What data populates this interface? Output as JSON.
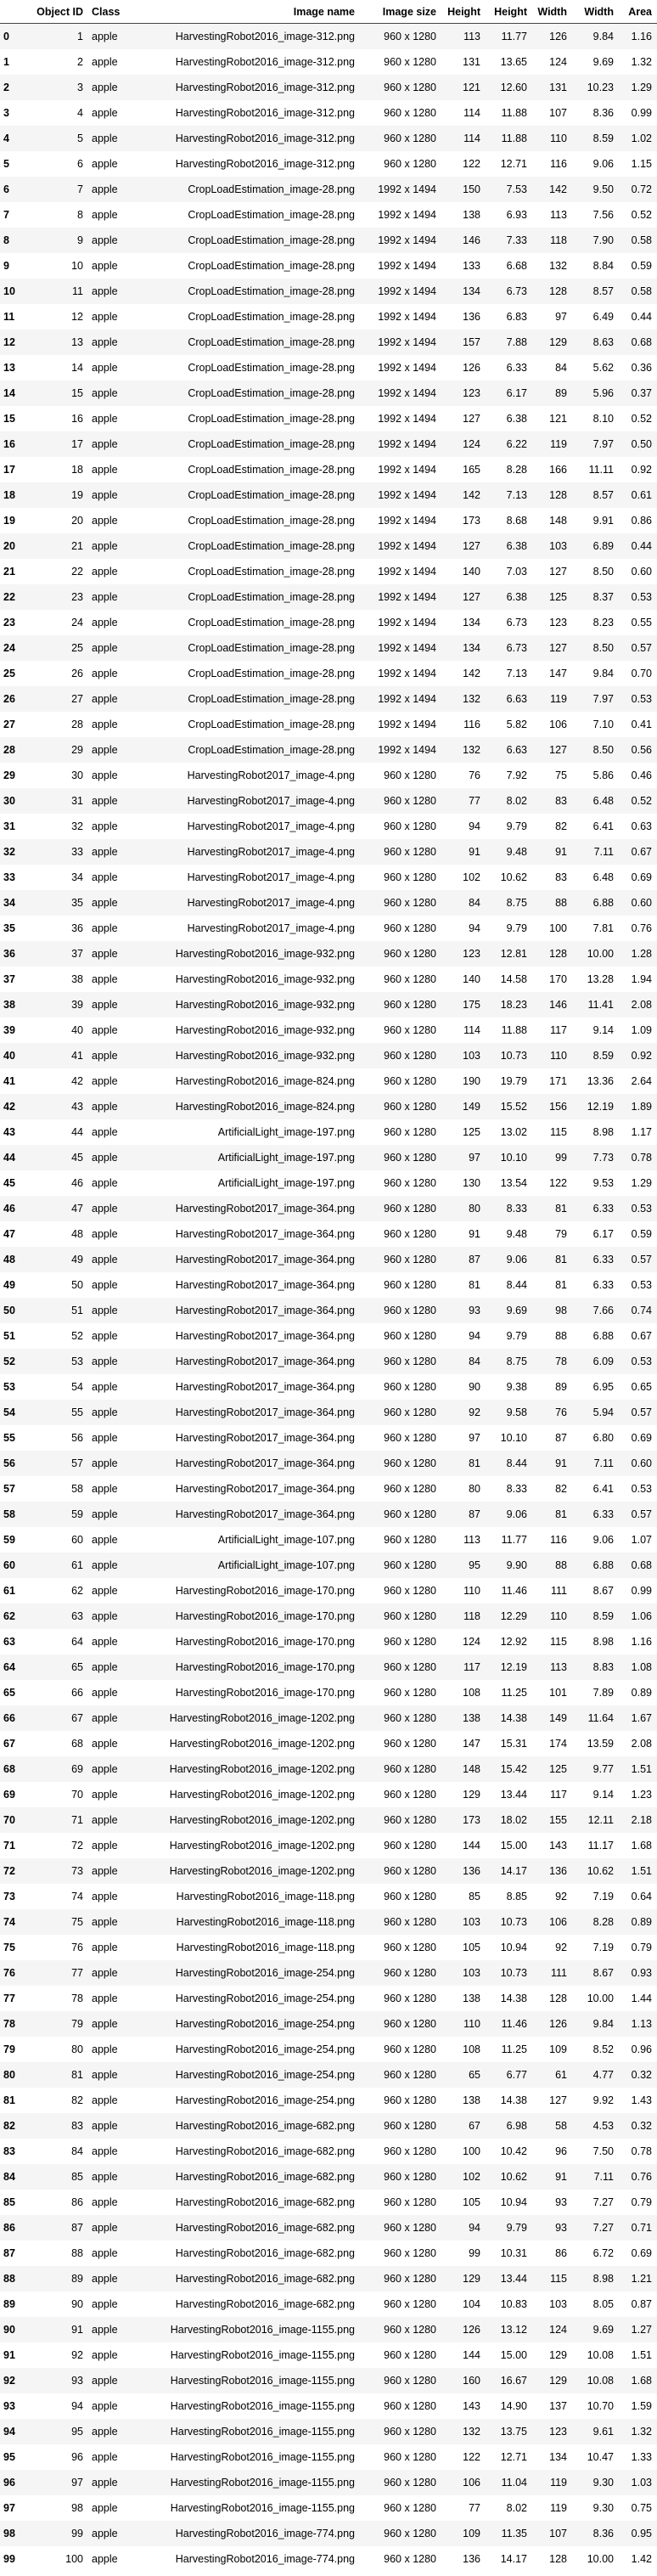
{
  "columns": [
    "",
    "Object ID",
    "Class",
    "Image name",
    "Image size",
    "Height",
    "Height",
    "Width",
    "Width",
    "Area"
  ],
  "rows": [
    [
      "0",
      "1",
      "apple",
      "HarvestingRobot2016_image-312.png",
      "960 x 1280",
      "113",
      "11.77",
      "126",
      "9.84",
      "1.16"
    ],
    [
      "1",
      "2",
      "apple",
      "HarvestingRobot2016_image-312.png",
      "960 x 1280",
      "131",
      "13.65",
      "124",
      "9.69",
      "1.32"
    ],
    [
      "2",
      "3",
      "apple",
      "HarvestingRobot2016_image-312.png",
      "960 x 1280",
      "121",
      "12.60",
      "131",
      "10.23",
      "1.29"
    ],
    [
      "3",
      "4",
      "apple",
      "HarvestingRobot2016_image-312.png",
      "960 x 1280",
      "114",
      "11.88",
      "107",
      "8.36",
      "0.99"
    ],
    [
      "4",
      "5",
      "apple",
      "HarvestingRobot2016_image-312.png",
      "960 x 1280",
      "114",
      "11.88",
      "110",
      "8.59",
      "1.02"
    ],
    [
      "5",
      "6",
      "apple",
      "HarvestingRobot2016_image-312.png",
      "960 x 1280",
      "122",
      "12.71",
      "116",
      "9.06",
      "1.15"
    ],
    [
      "6",
      "7",
      "apple",
      "CropLoadEstimation_image-28.png",
      "1992 x 1494",
      "150",
      "7.53",
      "142",
      "9.50",
      "0.72"
    ],
    [
      "7",
      "8",
      "apple",
      "CropLoadEstimation_image-28.png",
      "1992 x 1494",
      "138",
      "6.93",
      "113",
      "7.56",
      "0.52"
    ],
    [
      "8",
      "9",
      "apple",
      "CropLoadEstimation_image-28.png",
      "1992 x 1494",
      "146",
      "7.33",
      "118",
      "7.90",
      "0.58"
    ],
    [
      "9",
      "10",
      "apple",
      "CropLoadEstimation_image-28.png",
      "1992 x 1494",
      "133",
      "6.68",
      "132",
      "8.84",
      "0.59"
    ],
    [
      "10",
      "11",
      "apple",
      "CropLoadEstimation_image-28.png",
      "1992 x 1494",
      "134",
      "6.73",
      "128",
      "8.57",
      "0.58"
    ],
    [
      "11",
      "12",
      "apple",
      "CropLoadEstimation_image-28.png",
      "1992 x 1494",
      "136",
      "6.83",
      "97",
      "6.49",
      "0.44"
    ],
    [
      "12",
      "13",
      "apple",
      "CropLoadEstimation_image-28.png",
      "1992 x 1494",
      "157",
      "7.88",
      "129",
      "8.63",
      "0.68"
    ],
    [
      "13",
      "14",
      "apple",
      "CropLoadEstimation_image-28.png",
      "1992 x 1494",
      "126",
      "6.33",
      "84",
      "5.62",
      "0.36"
    ],
    [
      "14",
      "15",
      "apple",
      "CropLoadEstimation_image-28.png",
      "1992 x 1494",
      "123",
      "6.17",
      "89",
      "5.96",
      "0.37"
    ],
    [
      "15",
      "16",
      "apple",
      "CropLoadEstimation_image-28.png",
      "1992 x 1494",
      "127",
      "6.38",
      "121",
      "8.10",
      "0.52"
    ],
    [
      "16",
      "17",
      "apple",
      "CropLoadEstimation_image-28.png",
      "1992 x 1494",
      "124",
      "6.22",
      "119",
      "7.97",
      "0.50"
    ],
    [
      "17",
      "18",
      "apple",
      "CropLoadEstimation_image-28.png",
      "1992 x 1494",
      "165",
      "8.28",
      "166",
      "11.11",
      "0.92"
    ],
    [
      "18",
      "19",
      "apple",
      "CropLoadEstimation_image-28.png",
      "1992 x 1494",
      "142",
      "7.13",
      "128",
      "8.57",
      "0.61"
    ],
    [
      "19",
      "20",
      "apple",
      "CropLoadEstimation_image-28.png",
      "1992 x 1494",
      "173",
      "8.68",
      "148",
      "9.91",
      "0.86"
    ],
    [
      "20",
      "21",
      "apple",
      "CropLoadEstimation_image-28.png",
      "1992 x 1494",
      "127",
      "6.38",
      "103",
      "6.89",
      "0.44"
    ],
    [
      "21",
      "22",
      "apple",
      "CropLoadEstimation_image-28.png",
      "1992 x 1494",
      "140",
      "7.03",
      "127",
      "8.50",
      "0.60"
    ],
    [
      "22",
      "23",
      "apple",
      "CropLoadEstimation_image-28.png",
      "1992 x 1494",
      "127",
      "6.38",
      "125",
      "8.37",
      "0.53"
    ],
    [
      "23",
      "24",
      "apple",
      "CropLoadEstimation_image-28.png",
      "1992 x 1494",
      "134",
      "6.73",
      "123",
      "8.23",
      "0.55"
    ],
    [
      "24",
      "25",
      "apple",
      "CropLoadEstimation_image-28.png",
      "1992 x 1494",
      "134",
      "6.73",
      "127",
      "8.50",
      "0.57"
    ],
    [
      "25",
      "26",
      "apple",
      "CropLoadEstimation_image-28.png",
      "1992 x 1494",
      "142",
      "7.13",
      "147",
      "9.84",
      "0.70"
    ],
    [
      "26",
      "27",
      "apple",
      "CropLoadEstimation_image-28.png",
      "1992 x 1494",
      "132",
      "6.63",
      "119",
      "7.97",
      "0.53"
    ],
    [
      "27",
      "28",
      "apple",
      "CropLoadEstimation_image-28.png",
      "1992 x 1494",
      "116",
      "5.82",
      "106",
      "7.10",
      "0.41"
    ],
    [
      "28",
      "29",
      "apple",
      "CropLoadEstimation_image-28.png",
      "1992 x 1494",
      "132",
      "6.63",
      "127",
      "8.50",
      "0.56"
    ],
    [
      "29",
      "30",
      "apple",
      "HarvestingRobot2017_image-4.png",
      "960 x 1280",
      "76",
      "7.92",
      "75",
      "5.86",
      "0.46"
    ],
    [
      "30",
      "31",
      "apple",
      "HarvestingRobot2017_image-4.png",
      "960 x 1280",
      "77",
      "8.02",
      "83",
      "6.48",
      "0.52"
    ],
    [
      "31",
      "32",
      "apple",
      "HarvestingRobot2017_image-4.png",
      "960 x 1280",
      "94",
      "9.79",
      "82",
      "6.41",
      "0.63"
    ],
    [
      "32",
      "33",
      "apple",
      "HarvestingRobot2017_image-4.png",
      "960 x 1280",
      "91",
      "9.48",
      "91",
      "7.11",
      "0.67"
    ],
    [
      "33",
      "34",
      "apple",
      "HarvestingRobot2017_image-4.png",
      "960 x 1280",
      "102",
      "10.62",
      "83",
      "6.48",
      "0.69"
    ],
    [
      "34",
      "35",
      "apple",
      "HarvestingRobot2017_image-4.png",
      "960 x 1280",
      "84",
      "8.75",
      "88",
      "6.88",
      "0.60"
    ],
    [
      "35",
      "36",
      "apple",
      "HarvestingRobot2017_image-4.png",
      "960 x 1280",
      "94",
      "9.79",
      "100",
      "7.81",
      "0.76"
    ],
    [
      "36",
      "37",
      "apple",
      "HarvestingRobot2016_image-932.png",
      "960 x 1280",
      "123",
      "12.81",
      "128",
      "10.00",
      "1.28"
    ],
    [
      "37",
      "38",
      "apple",
      "HarvestingRobot2016_image-932.png",
      "960 x 1280",
      "140",
      "14.58",
      "170",
      "13.28",
      "1.94"
    ],
    [
      "38",
      "39",
      "apple",
      "HarvestingRobot2016_image-932.png",
      "960 x 1280",
      "175",
      "18.23",
      "146",
      "11.41",
      "2.08"
    ],
    [
      "39",
      "40",
      "apple",
      "HarvestingRobot2016_image-932.png",
      "960 x 1280",
      "114",
      "11.88",
      "117",
      "9.14",
      "1.09"
    ],
    [
      "40",
      "41",
      "apple",
      "HarvestingRobot2016_image-932.png",
      "960 x 1280",
      "103",
      "10.73",
      "110",
      "8.59",
      "0.92"
    ],
    [
      "41",
      "42",
      "apple",
      "HarvestingRobot2016_image-824.png",
      "960 x 1280",
      "190",
      "19.79",
      "171",
      "13.36",
      "2.64"
    ],
    [
      "42",
      "43",
      "apple",
      "HarvestingRobot2016_image-824.png",
      "960 x 1280",
      "149",
      "15.52",
      "156",
      "12.19",
      "1.89"
    ],
    [
      "43",
      "44",
      "apple",
      "ArtificialLight_image-197.png",
      "960 x 1280",
      "125",
      "13.02",
      "115",
      "8.98",
      "1.17"
    ],
    [
      "44",
      "45",
      "apple",
      "ArtificialLight_image-197.png",
      "960 x 1280",
      "97",
      "10.10",
      "99",
      "7.73",
      "0.78"
    ],
    [
      "45",
      "46",
      "apple",
      "ArtificialLight_image-197.png",
      "960 x 1280",
      "130",
      "13.54",
      "122",
      "9.53",
      "1.29"
    ],
    [
      "46",
      "47",
      "apple",
      "HarvestingRobot2017_image-364.png",
      "960 x 1280",
      "80",
      "8.33",
      "81",
      "6.33",
      "0.53"
    ],
    [
      "47",
      "48",
      "apple",
      "HarvestingRobot2017_image-364.png",
      "960 x 1280",
      "91",
      "9.48",
      "79",
      "6.17",
      "0.59"
    ],
    [
      "48",
      "49",
      "apple",
      "HarvestingRobot2017_image-364.png",
      "960 x 1280",
      "87",
      "9.06",
      "81",
      "6.33",
      "0.57"
    ],
    [
      "49",
      "50",
      "apple",
      "HarvestingRobot2017_image-364.png",
      "960 x 1280",
      "81",
      "8.44",
      "81",
      "6.33",
      "0.53"
    ],
    [
      "50",
      "51",
      "apple",
      "HarvestingRobot2017_image-364.png",
      "960 x 1280",
      "93",
      "9.69",
      "98",
      "7.66",
      "0.74"
    ],
    [
      "51",
      "52",
      "apple",
      "HarvestingRobot2017_image-364.png",
      "960 x 1280",
      "94",
      "9.79",
      "88",
      "6.88",
      "0.67"
    ],
    [
      "52",
      "53",
      "apple",
      "HarvestingRobot2017_image-364.png",
      "960 x 1280",
      "84",
      "8.75",
      "78",
      "6.09",
      "0.53"
    ],
    [
      "53",
      "54",
      "apple",
      "HarvestingRobot2017_image-364.png",
      "960 x 1280",
      "90",
      "9.38",
      "89",
      "6.95",
      "0.65"
    ],
    [
      "54",
      "55",
      "apple",
      "HarvestingRobot2017_image-364.png",
      "960 x 1280",
      "92",
      "9.58",
      "76",
      "5.94",
      "0.57"
    ],
    [
      "55",
      "56",
      "apple",
      "HarvestingRobot2017_image-364.png",
      "960 x 1280",
      "97",
      "10.10",
      "87",
      "6.80",
      "0.69"
    ],
    [
      "56",
      "57",
      "apple",
      "HarvestingRobot2017_image-364.png",
      "960 x 1280",
      "81",
      "8.44",
      "91",
      "7.11",
      "0.60"
    ],
    [
      "57",
      "58",
      "apple",
      "HarvestingRobot2017_image-364.png",
      "960 x 1280",
      "80",
      "8.33",
      "82",
      "6.41",
      "0.53"
    ],
    [
      "58",
      "59",
      "apple",
      "HarvestingRobot2017_image-364.png",
      "960 x 1280",
      "87",
      "9.06",
      "81",
      "6.33",
      "0.57"
    ],
    [
      "59",
      "60",
      "apple",
      "ArtificialLight_image-107.png",
      "960 x 1280",
      "113",
      "11.77",
      "116",
      "9.06",
      "1.07"
    ],
    [
      "60",
      "61",
      "apple",
      "ArtificialLight_image-107.png",
      "960 x 1280",
      "95",
      "9.90",
      "88",
      "6.88",
      "0.68"
    ],
    [
      "61",
      "62",
      "apple",
      "HarvestingRobot2016_image-170.png",
      "960 x 1280",
      "110",
      "11.46",
      "111",
      "8.67",
      "0.99"
    ],
    [
      "62",
      "63",
      "apple",
      "HarvestingRobot2016_image-170.png",
      "960 x 1280",
      "118",
      "12.29",
      "110",
      "8.59",
      "1.06"
    ],
    [
      "63",
      "64",
      "apple",
      "HarvestingRobot2016_image-170.png",
      "960 x 1280",
      "124",
      "12.92",
      "115",
      "8.98",
      "1.16"
    ],
    [
      "64",
      "65",
      "apple",
      "HarvestingRobot2016_image-170.png",
      "960 x 1280",
      "117",
      "12.19",
      "113",
      "8.83",
      "1.08"
    ],
    [
      "65",
      "66",
      "apple",
      "HarvestingRobot2016_image-170.png",
      "960 x 1280",
      "108",
      "11.25",
      "101",
      "7.89",
      "0.89"
    ],
    [
      "66",
      "67",
      "apple",
      "HarvestingRobot2016_image-1202.png",
      "960 x 1280",
      "138",
      "14.38",
      "149",
      "11.64",
      "1.67"
    ],
    [
      "67",
      "68",
      "apple",
      "HarvestingRobot2016_image-1202.png",
      "960 x 1280",
      "147",
      "15.31",
      "174",
      "13.59",
      "2.08"
    ],
    [
      "68",
      "69",
      "apple",
      "HarvestingRobot2016_image-1202.png",
      "960 x 1280",
      "148",
      "15.42",
      "125",
      "9.77",
      "1.51"
    ],
    [
      "69",
      "70",
      "apple",
      "HarvestingRobot2016_image-1202.png",
      "960 x 1280",
      "129",
      "13.44",
      "117",
      "9.14",
      "1.23"
    ],
    [
      "70",
      "71",
      "apple",
      "HarvestingRobot2016_image-1202.png",
      "960 x 1280",
      "173",
      "18.02",
      "155",
      "12.11",
      "2.18"
    ],
    [
      "71",
      "72",
      "apple",
      "HarvestingRobot2016_image-1202.png",
      "960 x 1280",
      "144",
      "15.00",
      "143",
      "11.17",
      "1.68"
    ],
    [
      "72",
      "73",
      "apple",
      "HarvestingRobot2016_image-1202.png",
      "960 x 1280",
      "136",
      "14.17",
      "136",
      "10.62",
      "1.51"
    ],
    [
      "73",
      "74",
      "apple",
      "HarvestingRobot2016_image-118.png",
      "960 x 1280",
      "85",
      "8.85",
      "92",
      "7.19",
      "0.64"
    ],
    [
      "74",
      "75",
      "apple",
      "HarvestingRobot2016_image-118.png",
      "960 x 1280",
      "103",
      "10.73",
      "106",
      "8.28",
      "0.89"
    ],
    [
      "75",
      "76",
      "apple",
      "HarvestingRobot2016_image-118.png",
      "960 x 1280",
      "105",
      "10.94",
      "92",
      "7.19",
      "0.79"
    ],
    [
      "76",
      "77",
      "apple",
      "HarvestingRobot2016_image-254.png",
      "960 x 1280",
      "103",
      "10.73",
      "111",
      "8.67",
      "0.93"
    ],
    [
      "77",
      "78",
      "apple",
      "HarvestingRobot2016_image-254.png",
      "960 x 1280",
      "138",
      "14.38",
      "128",
      "10.00",
      "1.44"
    ],
    [
      "78",
      "79",
      "apple",
      "HarvestingRobot2016_image-254.png",
      "960 x 1280",
      "110",
      "11.46",
      "126",
      "9.84",
      "1.13"
    ],
    [
      "79",
      "80",
      "apple",
      "HarvestingRobot2016_image-254.png",
      "960 x 1280",
      "108",
      "11.25",
      "109",
      "8.52",
      "0.96"
    ],
    [
      "80",
      "81",
      "apple",
      "HarvestingRobot2016_image-254.png",
      "960 x 1280",
      "65",
      "6.77",
      "61",
      "4.77",
      "0.32"
    ],
    [
      "81",
      "82",
      "apple",
      "HarvestingRobot2016_image-254.png",
      "960 x 1280",
      "138",
      "14.38",
      "127",
      "9.92",
      "1.43"
    ],
    [
      "82",
      "83",
      "apple",
      "HarvestingRobot2016_image-682.png",
      "960 x 1280",
      "67",
      "6.98",
      "58",
      "4.53",
      "0.32"
    ],
    [
      "83",
      "84",
      "apple",
      "HarvestingRobot2016_image-682.png",
      "960 x 1280",
      "100",
      "10.42",
      "96",
      "7.50",
      "0.78"
    ],
    [
      "84",
      "85",
      "apple",
      "HarvestingRobot2016_image-682.png",
      "960 x 1280",
      "102",
      "10.62",
      "91",
      "7.11",
      "0.76"
    ],
    [
      "85",
      "86",
      "apple",
      "HarvestingRobot2016_image-682.png",
      "960 x 1280",
      "105",
      "10.94",
      "93",
      "7.27",
      "0.79"
    ],
    [
      "86",
      "87",
      "apple",
      "HarvestingRobot2016_image-682.png",
      "960 x 1280",
      "94",
      "9.79",
      "93",
      "7.27",
      "0.71"
    ],
    [
      "87",
      "88",
      "apple",
      "HarvestingRobot2016_image-682.png",
      "960 x 1280",
      "99",
      "10.31",
      "86",
      "6.72",
      "0.69"
    ],
    [
      "88",
      "89",
      "apple",
      "HarvestingRobot2016_image-682.png",
      "960 x 1280",
      "129",
      "13.44",
      "115",
      "8.98",
      "1.21"
    ],
    [
      "89",
      "90",
      "apple",
      "HarvestingRobot2016_image-682.png",
      "960 x 1280",
      "104",
      "10.83",
      "103",
      "8.05",
      "0.87"
    ],
    [
      "90",
      "91",
      "apple",
      "HarvestingRobot2016_image-1155.png",
      "960 x 1280",
      "126",
      "13.12",
      "124",
      "9.69",
      "1.27"
    ],
    [
      "91",
      "92",
      "apple",
      "HarvestingRobot2016_image-1155.png",
      "960 x 1280",
      "144",
      "15.00",
      "129",
      "10.08",
      "1.51"
    ],
    [
      "92",
      "93",
      "apple",
      "HarvestingRobot2016_image-1155.png",
      "960 x 1280",
      "160",
      "16.67",
      "129",
      "10.08",
      "1.68"
    ],
    [
      "93",
      "94",
      "apple",
      "HarvestingRobot2016_image-1155.png",
      "960 x 1280",
      "143",
      "14.90",
      "137",
      "10.70",
      "1.59"
    ],
    [
      "94",
      "95",
      "apple",
      "HarvestingRobot2016_image-1155.png",
      "960 x 1280",
      "132",
      "13.75",
      "123",
      "9.61",
      "1.32"
    ],
    [
      "95",
      "96",
      "apple",
      "HarvestingRobot2016_image-1155.png",
      "960 x 1280",
      "122",
      "12.71",
      "134",
      "10.47",
      "1.33"
    ],
    [
      "96",
      "97",
      "apple",
      "HarvestingRobot2016_image-1155.png",
      "960 x 1280",
      "106",
      "11.04",
      "119",
      "9.30",
      "1.03"
    ],
    [
      "97",
      "98",
      "apple",
      "HarvestingRobot2016_image-1155.png",
      "960 x 1280",
      "77",
      "8.02",
      "119",
      "9.30",
      "0.75"
    ],
    [
      "98",
      "99",
      "apple",
      "HarvestingRobot2016_image-774.png",
      "960 x 1280",
      "109",
      "11.35",
      "107",
      "8.36",
      "0.95"
    ],
    [
      "99",
      "100",
      "apple",
      "HarvestingRobot2016_image-774.png",
      "960 x 1280",
      "136",
      "14.17",
      "128",
      "10.00",
      "1.42"
    ]
  ]
}
